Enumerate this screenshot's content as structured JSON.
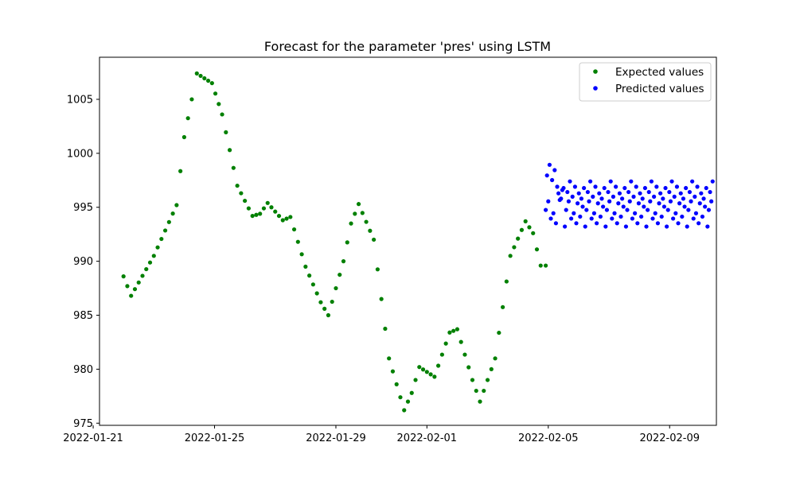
{
  "chart_data": {
    "type": "scatter",
    "title": "Forecast for the parameter 'pres' using LSTM",
    "xlabel": "",
    "ylabel": "",
    "x_axis_type": "date",
    "xlim": [
      "2022-01-21T05:00",
      "2022-02-10T13:00"
    ],
    "ylim": [
      974.8,
      1008.9
    ],
    "x_ticks": [
      "2022-01-21",
      "2022-01-25",
      "2022-01-29",
      "2022-02-01",
      "2022-02-05",
      "2022-02-09"
    ],
    "y_ticks": [
      975,
      980,
      985,
      990,
      995,
      1000,
      1005
    ],
    "legend_position": "upper right",
    "grid": false,
    "series": [
      {
        "name": "Expected values",
        "color": "#008000",
        "anchors": [
          [
            "2022-01-22T00:00",
            988.6
          ],
          [
            "2022-01-22T06:00",
            986.8
          ],
          [
            "2022-01-23T00:00",
            990.5
          ],
          [
            "2022-01-23T18:00",
            995.2
          ],
          [
            "2022-01-24T00:00",
            1001.5
          ],
          [
            "2022-01-24T06:00",
            1005.0
          ],
          [
            "2022-01-24T10:00",
            1007.4
          ],
          [
            "2022-01-24T22:00",
            1006.5
          ],
          [
            "2022-01-25T06:00",
            1003.6
          ],
          [
            "2022-01-25T18:00",
            997.0
          ],
          [
            "2022-01-26T06:00",
            994.2
          ],
          [
            "2022-01-26T12:00",
            994.4
          ],
          [
            "2022-01-26T18:00",
            995.4
          ],
          [
            "2022-01-27T06:00",
            993.8
          ],
          [
            "2022-01-27T12:00",
            994.1
          ],
          [
            "2022-01-28T00:00",
            989.5
          ],
          [
            "2022-01-28T12:00",
            986.2
          ],
          [
            "2022-01-28T18:00",
            985.0
          ],
          [
            "2022-01-29T06:00",
            990.0
          ],
          [
            "2022-01-29T12:00",
            993.5
          ],
          [
            "2022-01-29T18:00",
            995.3
          ],
          [
            "2022-01-30T06:00",
            992.0
          ],
          [
            "2022-01-30T18:00",
            981.0
          ],
          [
            "2022-01-31T06:00",
            976.2
          ],
          [
            "2022-01-31T12:00",
            977.8
          ],
          [
            "2022-01-31T18:00",
            980.2
          ],
          [
            "2022-02-01T06:00",
            979.3
          ],
          [
            "2022-02-01T18:00",
            983.4
          ],
          [
            "2022-02-02T00:00",
            983.7
          ],
          [
            "2022-02-02T12:00",
            979.0
          ],
          [
            "2022-02-02T18:00",
            977.0
          ],
          [
            "2022-02-03T06:00",
            981.0
          ],
          [
            "2022-02-03T18:00",
            990.5
          ],
          [
            "2022-02-04T06:00",
            993.7
          ],
          [
            "2022-02-04T12:00",
            992.6
          ],
          [
            "2022-02-04T18:00",
            989.6
          ],
          [
            "2022-02-04T22:00",
            989.6
          ]
        ]
      },
      {
        "name": "Predicted values",
        "color": "#0000ff",
        "start": "2022-02-04T22:00",
        "end": "2022-02-10T10:00",
        "count": 132,
        "y_range": [
          992.0,
          999.5
        ]
      }
    ]
  }
}
